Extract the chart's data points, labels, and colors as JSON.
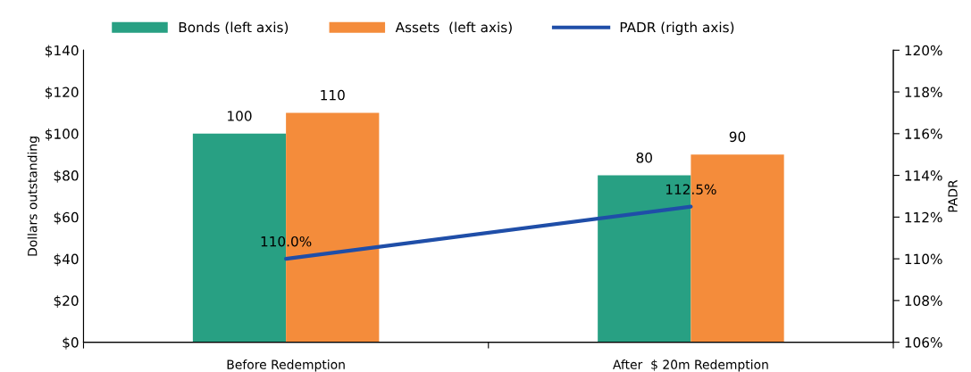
{
  "chart_data": {
    "type": "bar",
    "categories": [
      "Before Redemption",
      "After  $ 20m Redemption"
    ],
    "ylabel": "Dollars outstanding",
    "y2label": "PADR",
    "series": [
      {
        "name": "Bonds (left axis)",
        "color": "#28a083",
        "values": [
          100,
          80
        ],
        "value_labels": [
          "100",
          "80"
        ]
      },
      {
        "name": "Assets  (left axis)",
        "color": "#f48c3b",
        "values": [
          110,
          90
        ],
        "value_labels": [
          "110",
          "90"
        ]
      },
      {
        "name": "PADR (rigth axis)",
        "type": "line",
        "axis": "y2",
        "color": "#1f4ea8",
        "values": [
          110.0,
          112.5
        ],
        "value_labels": [
          "110.0%",
          "112.5%"
        ]
      }
    ],
    "ylim": [
      0,
      140
    ],
    "yticks": [
      {
        "value": 0,
        "label": "$0"
      },
      {
        "value": 20,
        "label": "$20"
      },
      {
        "value": 40,
        "label": "$40"
      },
      {
        "value": 60,
        "label": "$60"
      },
      {
        "value": 80,
        "label": "$80"
      },
      {
        "value": 100,
        "label": "$100"
      },
      {
        "value": 120,
        "label": "$120"
      },
      {
        "value": 140,
        "label": "$140"
      }
    ],
    "y2lim": [
      106,
      120
    ],
    "y2ticks": [
      {
        "value": 106,
        "label": "106%"
      },
      {
        "value": 108,
        "label": "108%"
      },
      {
        "value": 110,
        "label": "110%"
      },
      {
        "value": 112,
        "label": "112%"
      },
      {
        "value": 114,
        "label": "114%"
      },
      {
        "value": 116,
        "label": "116%"
      },
      {
        "value": 118,
        "label": "118%"
      },
      {
        "value": 120,
        "label": "120%"
      }
    ],
    "grid": false,
    "legend": "top"
  }
}
